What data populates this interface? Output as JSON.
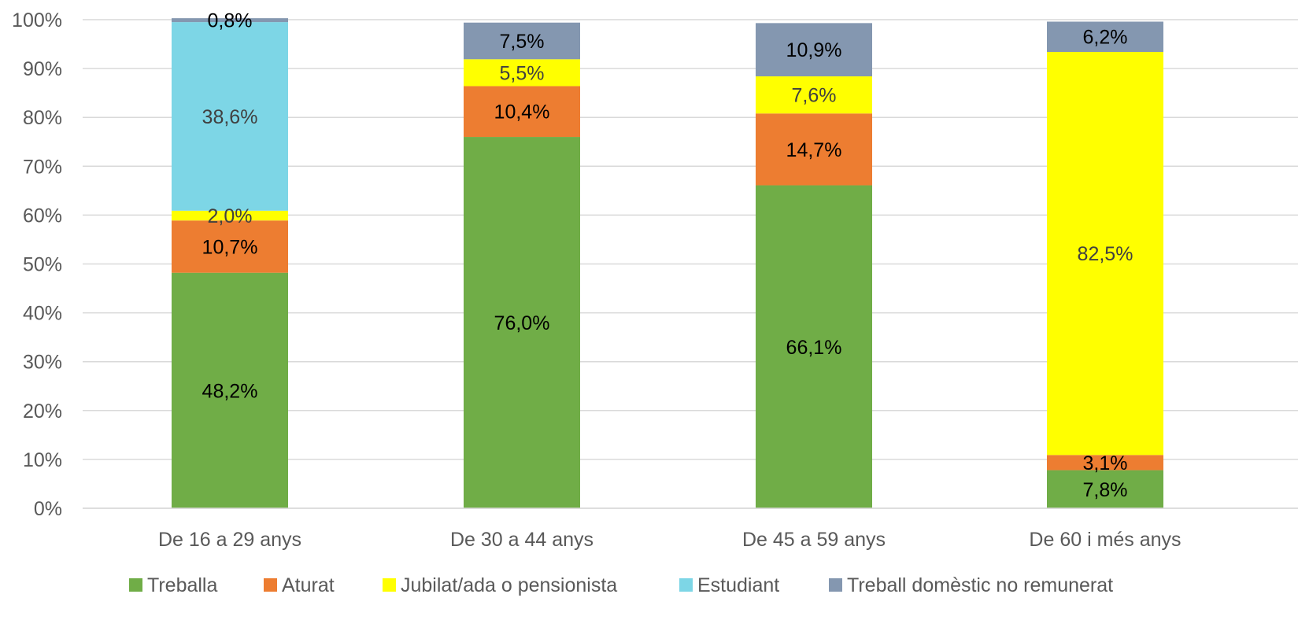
{
  "chart_data": {
    "type": "bar",
    "stacked": true,
    "categories": [
      "De 16 a 29 anys",
      "De 30 a 44 anys",
      "De 45 a 59 anys",
      "De 60 i més anys"
    ],
    "series": [
      {
        "name": "Treballa",
        "color": "#70AD47",
        "label_color": "#000000",
        "values": [
          48.2,
          76.0,
          66.1,
          7.8
        ],
        "labels": [
          "48,2%",
          "76,0%",
          "66,1%",
          "7,8%"
        ]
      },
      {
        "name": "Aturat",
        "color": "#ED7D31",
        "label_color": "#000000",
        "values": [
          10.7,
          10.4,
          14.7,
          3.1
        ],
        "labels": [
          "10,7%",
          "10,4%",
          "14,7%",
          "3,1%"
        ]
      },
      {
        "name": "Jubilat/ada o pensionista",
        "color": "#FFFF00",
        "label_color": "#404040",
        "values": [
          2.0,
          5.5,
          7.6,
          82.5
        ],
        "labels": [
          "2,0%",
          "5,5%",
          "7,6%",
          "82,5%"
        ]
      },
      {
        "name": "Estudiant",
        "color": "#7DD6E6",
        "label_color": "#404040",
        "values": [
          38.6,
          0,
          0,
          0
        ],
        "labels": [
          "38,6%",
          "",
          "",
          ""
        ]
      },
      {
        "name": "Treball domèstic no remunerat",
        "color": "#8497B0",
        "label_color": "#000000",
        "values": [
          0.8,
          7.5,
          10.9,
          6.2
        ],
        "labels": [
          "0,8%",
          "7,5%",
          "10,9%",
          "6,2%"
        ]
      }
    ],
    "y_ticks": [
      "0%",
      "10%",
      "20%",
      "30%",
      "40%",
      "50%",
      "60%",
      "70%",
      "80%",
      "90%",
      "100%"
    ],
    "ylim": [
      0,
      100
    ],
    "grid": true,
    "legend_position": "bottom"
  }
}
